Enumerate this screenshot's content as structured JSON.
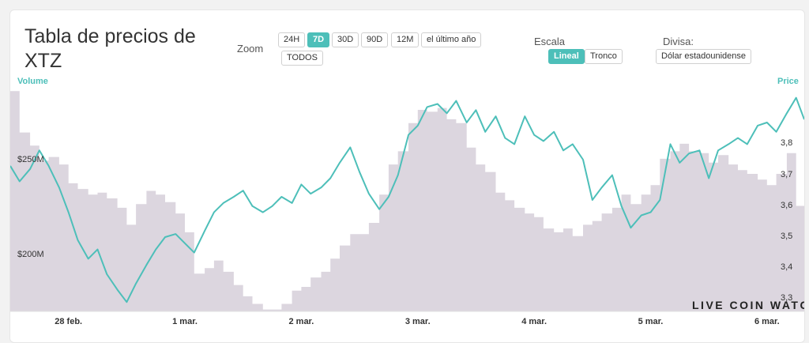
{
  "title": "Tabla de precios de XTZ",
  "zoom": {
    "label": "Zoom",
    "options": [
      "24H",
      "7D",
      "30D",
      "90D",
      "12M",
      "el último año",
      "TODOS"
    ],
    "active": "7D"
  },
  "scale": {
    "label": "Escala",
    "options": [
      "Lineal",
      "Tronco"
    ],
    "active": "Lineal"
  },
  "currency": {
    "label": "Divisa:",
    "value": "Dólar estadounidense"
  },
  "watermark": "LIVE COIN WATCH",
  "colors": {
    "price_line": "#4dbfb9",
    "volume_area": "#dcd6df",
    "active_button": "#4dbfb9"
  },
  "chart_data": {
    "type": "line",
    "x_ticks": [
      "28 feb.",
      "1 mar.",
      "2 mar.",
      "3 mar.",
      "4 mar.",
      "5 mar.",
      "6 mar."
    ],
    "x_range_days": [
      -0.5,
      6.32
    ],
    "y_left": {
      "title": "Volume",
      "ticks": [
        "$250M",
        "$200M"
      ],
      "tick_values": [
        250,
        200
      ],
      "range": [
        170,
        290
      ],
      "unit": "M USD"
    },
    "y_right": {
      "title": "Price",
      "ticks": [
        "3,8",
        "3,7",
        "3,6",
        "3,5",
        "3,4",
        "3,3"
      ],
      "tick_values": [
        3.8,
        3.7,
        3.6,
        3.5,
        3.4,
        3.3
      ],
      "range": [
        3.26,
        3.99
      ]
    },
    "series": [
      {
        "name": "Price",
        "axis": "right",
        "x": [
          -0.5,
          -0.42,
          -0.33,
          -0.25,
          -0.17,
          -0.08,
          0.0,
          0.08,
          0.17,
          0.25,
          0.33,
          0.42,
          0.5,
          0.58,
          0.67,
          0.75,
          0.83,
          0.92,
          1.0,
          1.08,
          1.17,
          1.25,
          1.33,
          1.42,
          1.5,
          1.58,
          1.67,
          1.75,
          1.83,
          1.92,
          2.0,
          2.08,
          2.17,
          2.25,
          2.33,
          2.42,
          2.5,
          2.58,
          2.67,
          2.75,
          2.83,
          2.92,
          3.0,
          3.08,
          3.17,
          3.25,
          3.33,
          3.42,
          3.5,
          3.58,
          3.67,
          3.75,
          3.83,
          3.92,
          4.0,
          4.08,
          4.17,
          4.25,
          4.33,
          4.42,
          4.5,
          4.58,
          4.67,
          4.75,
          4.83,
          4.92,
          5.0,
          5.08,
          5.17,
          5.25,
          5.33,
          5.42,
          5.5,
          5.58,
          5.67,
          5.75,
          5.83,
          5.92,
          6.0,
          6.08,
          6.17,
          6.25,
          6.32
        ],
        "values": [
          3.73,
          3.68,
          3.72,
          3.78,
          3.73,
          3.66,
          3.58,
          3.49,
          3.43,
          3.46,
          3.38,
          3.33,
          3.29,
          3.35,
          3.41,
          3.46,
          3.5,
          3.51,
          3.48,
          3.45,
          3.52,
          3.58,
          3.61,
          3.63,
          3.65,
          3.6,
          3.58,
          3.6,
          3.63,
          3.61,
          3.67,
          3.64,
          3.66,
          3.69,
          3.74,
          3.79,
          3.71,
          3.64,
          3.59,
          3.63,
          3.7,
          3.83,
          3.86,
          3.92,
          3.93,
          3.9,
          3.94,
          3.87,
          3.91,
          3.84,
          3.89,
          3.82,
          3.8,
          3.89,
          3.83,
          3.81,
          3.84,
          3.78,
          3.8,
          3.75,
          3.62,
          3.66,
          3.7,
          3.6,
          3.53,
          3.57,
          3.58,
          3.62,
          3.8,
          3.74,
          3.77,
          3.78,
          3.69,
          3.78,
          3.8,
          3.82,
          3.8,
          3.86,
          3.87,
          3.84,
          3.9,
          3.95,
          3.88
        ]
      },
      {
        "name": "Volume",
        "axis": "left",
        "x": [
          -0.5,
          -0.42,
          -0.33,
          -0.25,
          -0.17,
          -0.08,
          0.0,
          0.08,
          0.17,
          0.25,
          0.33,
          0.42,
          0.5,
          0.58,
          0.67,
          0.75,
          0.83,
          0.92,
          1.0,
          1.08,
          1.17,
          1.25,
          1.33,
          1.42,
          1.5,
          1.58,
          1.67,
          1.75,
          1.83,
          1.92,
          2.0,
          2.08,
          2.17,
          2.25,
          2.33,
          2.42,
          2.5,
          2.58,
          2.67,
          2.75,
          2.83,
          2.92,
          3.0,
          3.08,
          3.17,
          3.25,
          3.33,
          3.42,
          3.5,
          3.58,
          3.67,
          3.75,
          3.83,
          3.92,
          4.0,
          4.08,
          4.17,
          4.25,
          4.33,
          4.42,
          4.5,
          4.58,
          4.67,
          4.75,
          4.83,
          4.92,
          5.0,
          5.08,
          5.17,
          5.25,
          5.33,
          5.42,
          5.5,
          5.58,
          5.67,
          5.75,
          5.83,
          5.92,
          6.0,
          6.08,
          6.17,
          6.25,
          6.32
        ],
        "values": [
          287,
          265,
          258,
          250,
          252,
          248,
          238,
          235,
          232,
          233,
          230,
          225,
          216,
          227,
          234,
          232,
          228,
          222,
          212,
          190,
          193,
          197,
          191,
          184,
          178,
          174,
          171,
          171,
          174,
          181,
          183,
          188,
          191,
          198,
          205,
          211,
          211,
          217,
          232,
          248,
          255,
          270,
          277,
          276,
          278,
          272,
          270,
          257,
          248,
          244,
          233,
          229,
          225,
          222,
          220,
          214,
          212,
          214,
          210,
          216,
          218,
          222,
          225,
          232,
          227,
          232,
          237,
          251,
          255,
          259,
          255,
          254,
          249,
          253,
          248,
          245,
          243,
          240,
          237,
          243,
          254,
          226,
          227
        ]
      }
    ],
    "grid": false,
    "legend": "none"
  }
}
